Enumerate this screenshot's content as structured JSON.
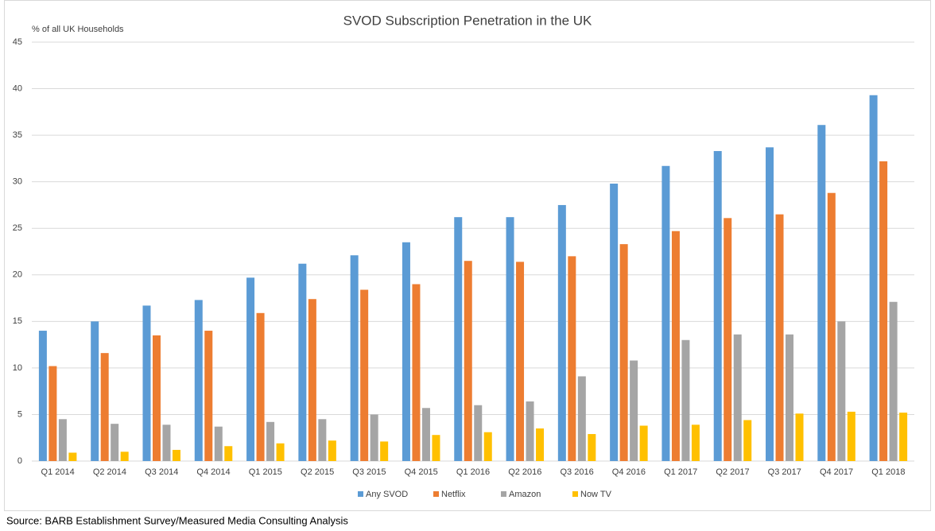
{
  "chart_data": {
    "type": "bar",
    "title": "SVOD Subscription Penetration in the UK",
    "y_label": "% of all UK Households",
    "categories": [
      "Q1 2014",
      "Q2 2014",
      "Q3 2014",
      "Q4 2014",
      "Q1 2015",
      "Q2 2015",
      "Q3 2015",
      "Q4 2015",
      "Q1 2016",
      "Q2 2016",
      "Q3 2016",
      "Q4 2016",
      "Q1 2017",
      "Q2 2017",
      "Q3 2017",
      "Q4 2017",
      "Q1 2018"
    ],
    "series": [
      {
        "name": "Any SVOD",
        "color": "#5b9bd5",
        "values": [
          14,
          15,
          16.7,
          17.3,
          19.7,
          21.2,
          22.1,
          23.5,
          26.2,
          26.2,
          27.5,
          29.8,
          31.7,
          33.3,
          33.7,
          36.1,
          39.3
        ]
      },
      {
        "name": "Netflix",
        "color": "#ed7d31",
        "values": [
          10.2,
          11.6,
          13.5,
          14,
          15.9,
          17.4,
          18.4,
          19,
          21.5,
          21.4,
          22,
          23.3,
          24.7,
          26.1,
          26.5,
          28.8,
          32.2
        ]
      },
      {
        "name": "Amazon",
        "color": "#a5a5a5",
        "values": [
          4.5,
          4,
          3.9,
          3.7,
          4.2,
          4.5,
          5,
          5.7,
          6,
          6.4,
          9.1,
          10.8,
          13,
          13.6,
          13.6,
          15,
          17.1
        ]
      },
      {
        "name": "Now TV",
        "color": "#ffc000",
        "values": [
          0.9,
          1,
          1.2,
          1.6,
          1.9,
          2.2,
          2.1,
          2.8,
          3.1,
          3.5,
          2.9,
          3.8,
          3.9,
          4.4,
          5.1,
          5.3,
          5.2
        ]
      }
    ],
    "ylim": [
      0,
      45
    ],
    "yticks": [
      0,
      5,
      10,
      15,
      20,
      25,
      30,
      35,
      40,
      45
    ],
    "grid": true,
    "legend": "bottom"
  },
  "source": "Source: BARB Establishment Survey/Measured Media Consulting Analysis"
}
